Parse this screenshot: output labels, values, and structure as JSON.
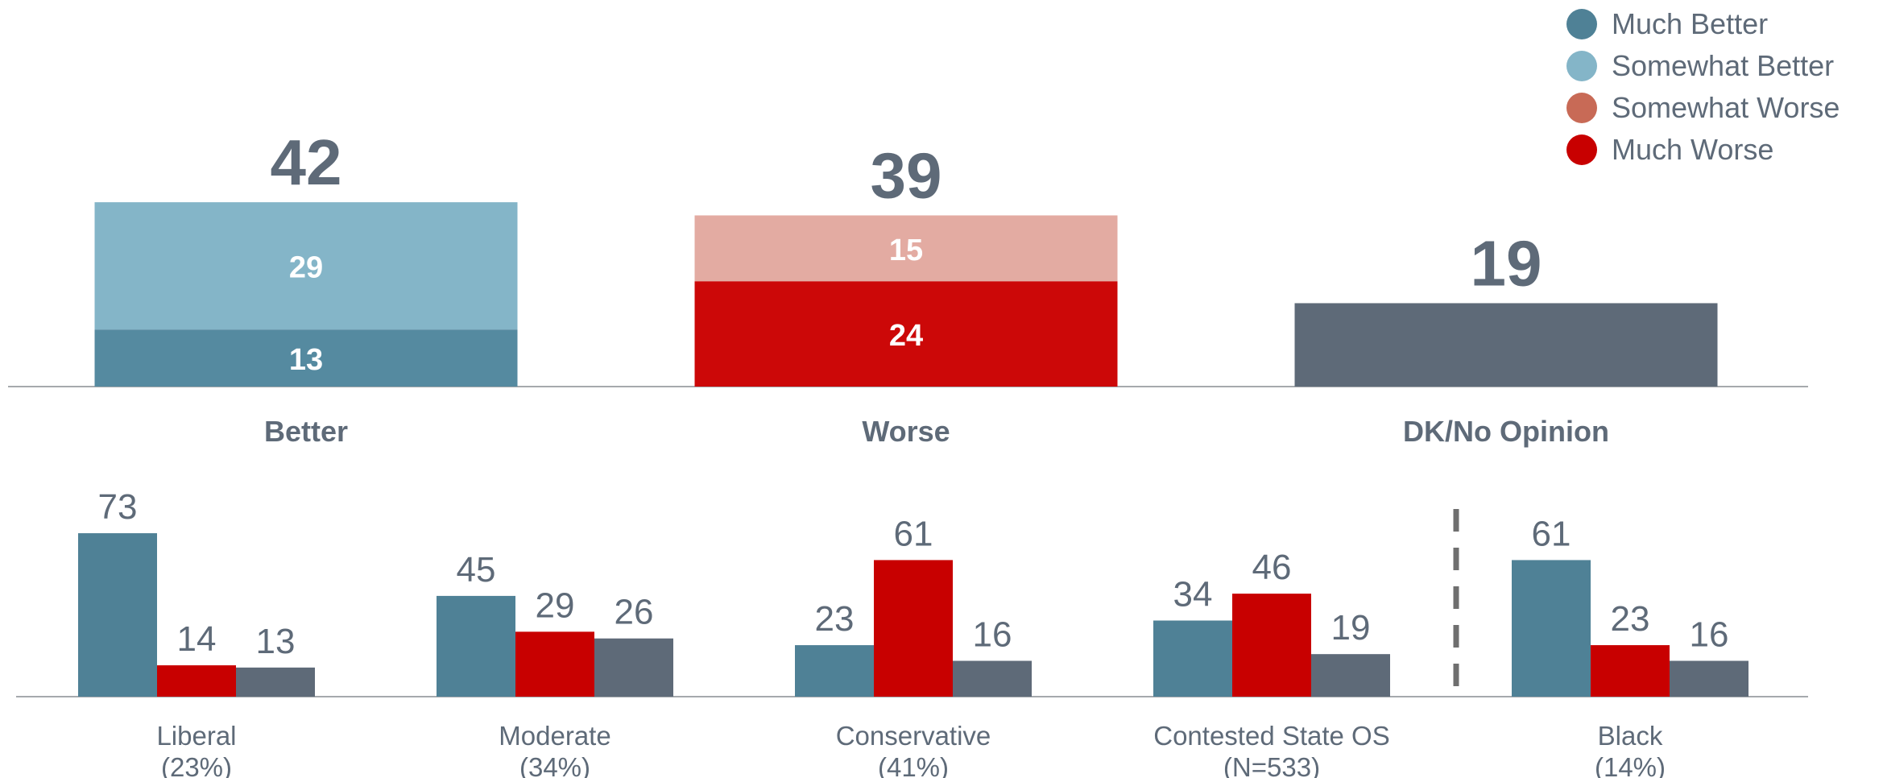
{
  "legend": {
    "items": [
      {
        "label": "Much Better",
        "color": "#4f8196"
      },
      {
        "label": "Somewhat Better",
        "color": "#84b5c8"
      },
      {
        "label": "Somewhat Worse",
        "color": "#c86a56"
      },
      {
        "label": "Much Worse",
        "color": "#c80000"
      }
    ]
  },
  "chart_data": [
    {
      "type": "bar",
      "categories": [
        "Better",
        "Worse",
        "DK/No Opinion"
      ],
      "totals": [
        42,
        39,
        19
      ],
      "stacks": [
        [
          {
            "series": "Much Better",
            "value": 13,
            "color": "#558aa0"
          },
          {
            "series": "Somewhat Better",
            "value": 29,
            "color": "#84b5c8"
          }
        ],
        [
          {
            "series": "Much Worse",
            "value": 24,
            "color": "#cc0808"
          },
          {
            "series": "Somewhat Worse",
            "value": 15,
            "color": "#e3aba2"
          }
        ],
        [
          {
            "series": "",
            "value": 19,
            "color": "#5e6a78"
          }
        ]
      ],
      "ylim": [
        0,
        45
      ]
    },
    {
      "type": "bar",
      "groups": [
        {
          "label": "Liberal",
          "sublabel": "(23%)",
          "values": [
            73,
            14,
            13
          ]
        },
        {
          "label": "Moderate",
          "sublabel": "(34%)",
          "values": [
            45,
            29,
            26
          ]
        },
        {
          "label": "Conservative",
          "sublabel": "(41%)",
          "values": [
            23,
            61,
            16
          ]
        },
        {
          "label": "Contested State OS",
          "sublabel": "(N=533)",
          "values": [
            34,
            46,
            19
          ]
        },
        {
          "label": "Black",
          "sublabel": "(14%)",
          "values": [
            61,
            23,
            16
          ]
        }
      ],
      "bar_colors": [
        "#4f8196",
        "#c80000",
        "#5e6a78"
      ],
      "divider_after_group": 3,
      "ylim": [
        0,
        80
      ]
    }
  ]
}
